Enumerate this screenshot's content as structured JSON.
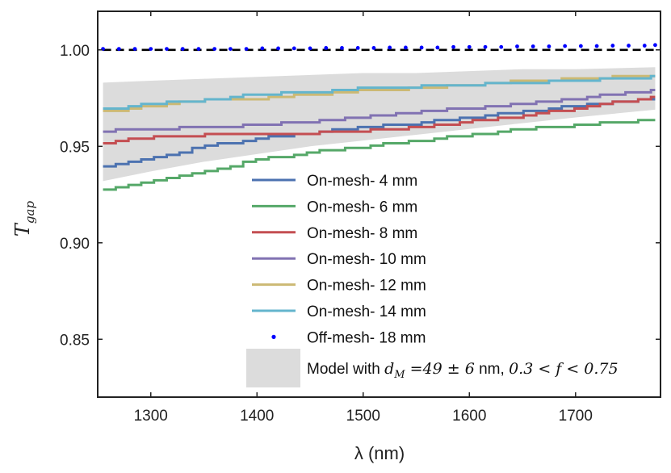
{
  "chart_data": {
    "type": "line",
    "title": "",
    "xlabel": "λ (nm)",
    "ylabel_main": "T",
    "ylabel_sub": "gap",
    "xlim": [
      1250,
      1780
    ],
    "ylim": [
      0.82,
      1.02
    ],
    "xticks": [
      1300,
      1400,
      1500,
      1600,
      1700
    ],
    "yticks": [
      0.85,
      0.9,
      0.95,
      1.0
    ],
    "xtick_labels": [
      "1300",
      "1400",
      "1500",
      "1600",
      "1700"
    ],
    "ytick_labels": [
      "0.85",
      "0.90",
      "0.95",
      "1.00"
    ],
    "grid": false,
    "reference_line": {
      "y": 1.0,
      "style": "dashed",
      "color": "#000000"
    },
    "band": {
      "color": "#dcdcdc",
      "x": [
        1255,
        1300,
        1350,
        1400,
        1450,
        1500,
        1550,
        1600,
        1650,
        1700,
        1775
      ],
      "lower": [
        0.932,
        0.937,
        0.942,
        0.946,
        0.95,
        0.953,
        0.956,
        0.959,
        0.962,
        0.965,
        0.969
      ],
      "upper": [
        0.983,
        0.984,
        0.985,
        0.986,
        0.987,
        0.988,
        0.988,
        0.989,
        0.99,
        0.99,
        0.991
      ]
    },
    "series": [
      {
        "name": "On-mesh- 4 mm",
        "color": "#4c72b0",
        "style": "step",
        "x": [
          1255,
          1300,
          1350,
          1400,
          1450,
          1500,
          1550,
          1600,
          1650,
          1700,
          1775
        ],
        "y": [
          0.939,
          0.944,
          0.95,
          0.954,
          0.957,
          0.96,
          0.962,
          0.965,
          0.968,
          0.971,
          0.975
        ]
      },
      {
        "name": "On-mesh- 6 mm",
        "color": "#55a868",
        "style": "step",
        "x": [
          1255,
          1300,
          1350,
          1400,
          1450,
          1500,
          1550,
          1600,
          1650,
          1700,
          1775
        ],
        "y": [
          0.928,
          0.932,
          0.937,
          0.943,
          0.947,
          0.95,
          0.953,
          0.956,
          0.959,
          0.961,
          0.964
        ]
      },
      {
        "name": "On-mesh- 8 mm",
        "color": "#c44e52",
        "style": "step",
        "x": [
          1255,
          1300,
          1350,
          1400,
          1450,
          1500,
          1550,
          1600,
          1650,
          1700,
          1775
        ],
        "y": [
          0.952,
          0.955,
          0.956,
          0.956,
          0.957,
          0.958,
          0.96,
          0.963,
          0.966,
          0.97,
          0.976
        ]
      },
      {
        "name": "On-mesh- 10 mm",
        "color": "#8172b2",
        "style": "step",
        "x": [
          1255,
          1300,
          1350,
          1400,
          1450,
          1500,
          1550,
          1600,
          1650,
          1700,
          1775
        ],
        "y": [
          0.958,
          0.959,
          0.96,
          0.961,
          0.963,
          0.965,
          0.968,
          0.97,
          0.972,
          0.975,
          0.979
        ]
      },
      {
        "name": "On-mesh- 12 mm",
        "color": "#ccb974",
        "style": "step",
        "x": [
          1255,
          1300,
          1350,
          1400,
          1450,
          1500,
          1550,
          1600,
          1650,
          1700,
          1775
        ],
        "y": [
          0.968,
          0.971,
          0.974,
          0.975,
          0.977,
          0.979,
          0.98,
          0.982,
          0.984,
          0.985,
          0.987
        ]
      },
      {
        "name": "On-mesh- 14 mm",
        "color": "#64b5cd",
        "style": "step",
        "x": [
          1255,
          1300,
          1350,
          1400,
          1450,
          1500,
          1550,
          1600,
          1650,
          1700,
          1775
        ],
        "y": [
          0.969,
          0.972,
          0.974,
          0.977,
          0.978,
          0.98,
          0.981,
          0.982,
          0.983,
          0.984,
          0.986
        ]
      },
      {
        "name": "Off-mesh- 18 mm",
        "color": "#0000ff",
        "style": "dots",
        "x": [
          1255,
          1270,
          1285,
          1300,
          1315,
          1330,
          1345,
          1360,
          1375,
          1390,
          1405,
          1420,
          1435,
          1450,
          1465,
          1480,
          1495,
          1510,
          1525,
          1540,
          1555,
          1570,
          1585,
          1600,
          1615,
          1630,
          1645,
          1660,
          1675,
          1690,
          1705,
          1720,
          1735,
          1750,
          1765,
          1775
        ],
        "y": [
          1.0005,
          1.0005,
          1.0005,
          1.0005,
          1.0005,
          1.0005,
          1.0005,
          1.0005,
          1.0005,
          1.0005,
          1.0008,
          1.0008,
          1.0008,
          1.0008,
          1.001,
          1.001,
          1.001,
          1.001,
          1.0012,
          1.0012,
          1.0012,
          1.0012,
          1.0015,
          1.0015,
          1.0015,
          1.0015,
          1.0018,
          1.0018,
          1.0018,
          1.002,
          1.002,
          1.002,
          1.0022,
          1.0022,
          1.0022,
          1.0025
        ]
      }
    ],
    "legend": {
      "placement": "bottom-center",
      "model_label_prefix": "Model with ",
      "model_label_math1": "d",
      "model_label_math1_sub": "M",
      "model_label_math2": " =49 ± 6",
      "model_label_nm": " nm, ",
      "model_label_math3": "0.3 < f < 0.75"
    }
  }
}
